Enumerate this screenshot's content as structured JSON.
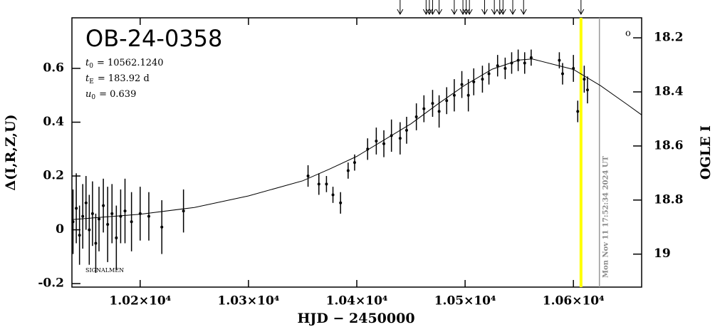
{
  "chart_data": {
    "type": "errorbar",
    "title": "OB-24-0358",
    "parameters": [
      {
        "symbol": "t",
        "sub": "0",
        "text": "= 10562.1240"
      },
      {
        "symbol": "t",
        "sub": "E",
        "text": "= 183.92 d"
      },
      {
        "symbol": "u",
        "sub": "0",
        "text": "= 0.639"
      }
    ],
    "x_label": "HJD − 2450000",
    "y_label": "Δ(I,R,Z,U)",
    "y2_label": "OGLE I",
    "corner_mark": "o",
    "footer_note": "SIGNALMEN",
    "timestamp": "Mon Nov 11 17:52:34 2024 UT",
    "xlim": [
      10137,
      10663
    ],
    "xticks": [
      {
        "value": 10200,
        "label": "1.02×10⁴"
      },
      {
        "value": 10300,
        "label": "1.03×10⁴"
      },
      {
        "value": 10400,
        "label": "1.04×10⁴"
      },
      {
        "value": 10500,
        "label": "1.05×10⁴"
      },
      {
        "value": 10600,
        "label": "1.06×10⁴"
      }
    ],
    "ylim": [
      -0.213,
      0.788
    ],
    "yticks": [
      -0.2,
      0,
      0.2,
      0.4,
      0.6
    ],
    "y2lim": [
      19.122,
      18.126
    ],
    "y2ticks": [
      18.2,
      18.4,
      18.6,
      18.8,
      19
    ],
    "data": {
      "color": "#000000",
      "x": [
        10138,
        10141,
        10144,
        10147,
        10150,
        10153,
        10156,
        10159,
        10162,
        10166,
        10170,
        10174,
        10178,
        10182,
        10186,
        10192,
        10200,
        10208,
        10220,
        10240,
        10355,
        10365,
        10372,
        10378,
        10385,
        10392,
        10398,
        10410,
        10418,
        10425,
        10432,
        10440,
        10446,
        10455,
        10462,
        10470,
        10476,
        10483,
        10490,
        10497,
        10503,
        10508,
        10516,
        10522,
        10530,
        10537,
        10543,
        10549,
        10555,
        10561,
        10587,
        10590,
        10600,
        10604,
        10610,
        10613
      ],
      "values": [
        0.03,
        0.08,
        -0.02,
        0.05,
        0.1,
        0.0,
        0.06,
        -0.05,
        0.04,
        0.09,
        0.02,
        0.06,
        -0.03,
        0.05,
        0.07,
        0.03,
        0.06,
        0.05,
        0.01,
        0.07,
        0.2,
        0.17,
        0.17,
        0.13,
        0.1,
        0.22,
        0.25,
        0.3,
        0.33,
        0.32,
        0.35,
        0.34,
        0.37,
        0.42,
        0.45,
        0.47,
        0.44,
        0.48,
        0.5,
        0.54,
        0.5,
        0.55,
        0.56,
        0.58,
        0.61,
        0.6,
        0.62,
        0.63,
        0.62,
        0.64,
        0.63,
        0.58,
        0.6,
        0.44,
        0.56,
        0.52
      ],
      "errors": [
        0.12,
        0.13,
        0.11,
        0.12,
        0.1,
        0.13,
        0.12,
        0.11,
        0.12,
        0.1,
        0.14,
        0.11,
        0.12,
        0.1,
        0.12,
        0.11,
        0.1,
        0.09,
        0.1,
        0.08,
        0.04,
        0.04,
        0.03,
        0.03,
        0.04,
        0.03,
        0.03,
        0.04,
        0.05,
        0.05,
        0.06,
        0.06,
        0.05,
        0.05,
        0.05,
        0.05,
        0.06,
        0.05,
        0.06,
        0.05,
        0.06,
        0.05,
        0.05,
        0.04,
        0.04,
        0.04,
        0.04,
        0.04,
        0.04,
        0.03,
        0.03,
        0.04,
        0.05,
        0.04,
        0.05,
        0.05
      ]
    },
    "model": {
      "color": "#000000",
      "x": [
        10137,
        10200,
        10250,
        10300,
        10350,
        10375,
        10400,
        10450,
        10475,
        10500,
        10525,
        10550,
        10562,
        10600,
        10625,
        10650,
        10663
      ],
      "values": [
        0.038,
        0.058,
        0.083,
        0.126,
        0.182,
        0.226,
        0.273,
        0.394,
        0.468,
        0.538,
        0.597,
        0.631,
        0.635,
        0.596,
        0.536,
        0.465,
        0.427
      ]
    },
    "arrows_x": [
      10440,
      10464,
      10467,
      10470,
      10476,
      10490,
      10498,
      10501,
      10504,
      10518,
      10527,
      10532,
      10535,
      10544,
      10554,
      10607
    ],
    "vlines": [
      {
        "x": 10607,
        "color": "#ffff00"
      },
      {
        "x": 10624,
        "color": "#999999"
      }
    ]
  }
}
